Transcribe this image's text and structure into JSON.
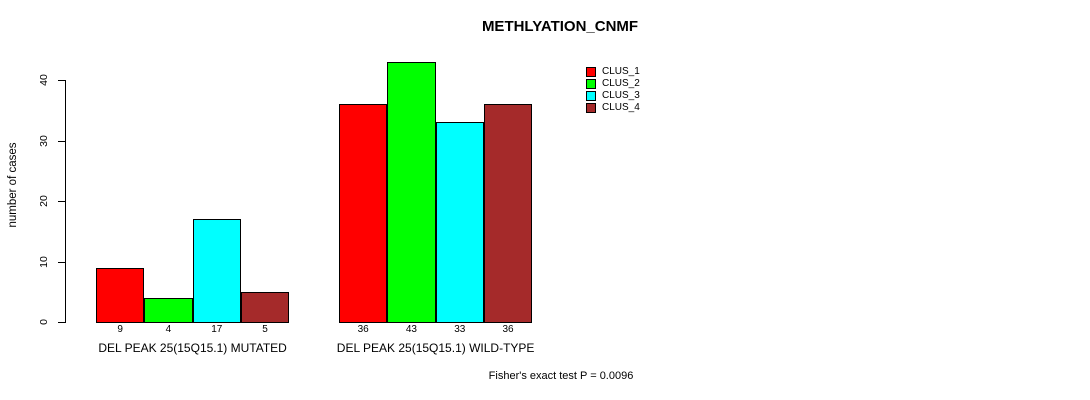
{
  "title": "METHLYATION_CNMF",
  "y_axis_label": "number of cases",
  "annotation": "Fisher's exact test P = 0.0096",
  "chart_data": {
    "type": "bar",
    "title": "METHLYATION_CNMF",
    "xlabel": "",
    "ylabel": "number of cases",
    "ylim": [
      0,
      40
    ],
    "yticks": [
      0,
      10,
      20,
      30,
      40
    ],
    "grid": false,
    "legend_position": "top-right",
    "legend_frame": false,
    "categories": [
      "DEL PEAK 25(15Q15.1) MUTATED",
      "DEL PEAK 25(15Q15.1) WILD-TYPE"
    ],
    "series": [
      {
        "name": "CLUS_1",
        "color": "#FF0000",
        "values": [
          9,
          36
        ]
      },
      {
        "name": "CLUS_2",
        "color": "#00FF00",
        "values": [
          4,
          43
        ]
      },
      {
        "name": "CLUS_3",
        "color": "#00FFFF",
        "values": [
          17,
          33
        ]
      },
      {
        "name": "CLUS_4",
        "color": "#A52A2A",
        "values": [
          5,
          36
        ]
      }
    ],
    "bar_value_labels": [
      [
        9,
        4,
        17,
        5
      ],
      [
        36,
        43,
        33,
        36
      ]
    ],
    "annotation": "Fisher's exact test P = 0.0096"
  },
  "legend": {
    "items": [
      {
        "label": "CLUS_1",
        "color": "#FF0000"
      },
      {
        "label": "CLUS_2",
        "color": "#00FF00"
      },
      {
        "label": "CLUS_3",
        "color": "#00FFFF"
      },
      {
        "label": "CLUS_4",
        "color": "#A52A2A"
      }
    ]
  },
  "colors": {
    "background": "#FFFFFF",
    "axis": "#000000",
    "text": "#000000"
  }
}
